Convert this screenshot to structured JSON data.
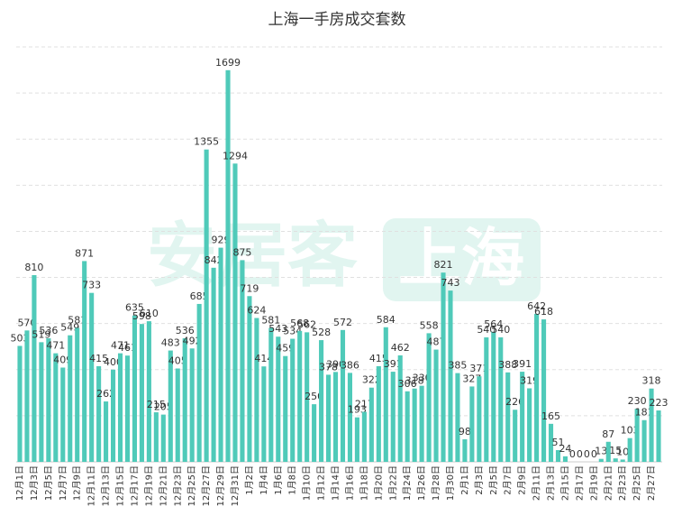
{
  "chart_data": {
    "type": "bar",
    "title": "上海一手房成交套数",
    "watermark": [
      "安居客",
      "上海"
    ],
    "categories": [
      "12月1日",
      null,
      "12月3日",
      null,
      "12月5日",
      null,
      "12月7日",
      null,
      "12月9日",
      null,
      "12月11日",
      null,
      "12月13日",
      null,
      "12月15日",
      null,
      "12月17日",
      null,
      "12月19日",
      null,
      "12月21日",
      null,
      "12月23日",
      null,
      "12月25日",
      null,
      "12月27日",
      null,
      "12月29日",
      null,
      "12月31日",
      null,
      "1月2日",
      null,
      "1月4日",
      null,
      "1月6日",
      null,
      "1月8日",
      null,
      "1月10日",
      null,
      "1月12日",
      null,
      "1月14日",
      null,
      "1月16日",
      null,
      "1月18日",
      null,
      "1月20日",
      null,
      "1月22日",
      null,
      "1月24日",
      null,
      "1月26日",
      null,
      "1月28日",
      null,
      "1月30日",
      null,
      "2月1日",
      null,
      "2月3日",
      null,
      "2月5日",
      null,
      "2月7日",
      null,
      "2月9日",
      null,
      "2月11日",
      null,
      "2月13日",
      null,
      "2月15日",
      null,
      "2月17日",
      null,
      "2月19日",
      null,
      "2月21日",
      null,
      "2月23日",
      null,
      "2月25日",
      null,
      "2月27日",
      null
    ],
    "values": [
      503,
      570,
      810,
      519,
      536,
      471,
      409,
      549,
      581,
      871,
      733,
      415,
      262,
      400,
      471,
      461,
      635,
      598,
      610,
      215,
      205,
      483,
      405,
      536,
      492,
      685,
      1355,
      842,
      929,
      1699,
      1294,
      875,
      719,
      624,
      414,
      581,
      543,
      459,
      534,
      568,
      562,
      250,
      528,
      378,
      390,
      572,
      386,
      193,
      217,
      322,
      415,
      584,
      391,
      462,
      306,
      318,
      330,
      558,
      487,
      821,
      743,
      385,
      98,
      327,
      371,
      540,
      564,
      540,
      388,
      226,
      391,
      319,
      642,
      618,
      165,
      51,
      24,
      0,
      0,
      0,
      0,
      13,
      87,
      15,
      10,
      103,
      230,
      181,
      318,
      223
    ],
    "color": "#4fcab9",
    "ylim": [
      0,
      1800
    ],
    "yticks": [
      0,
      200,
      400,
      600,
      800,
      1000,
      1200,
      1400,
      1600,
      1800
    ],
    "grid": true
  }
}
